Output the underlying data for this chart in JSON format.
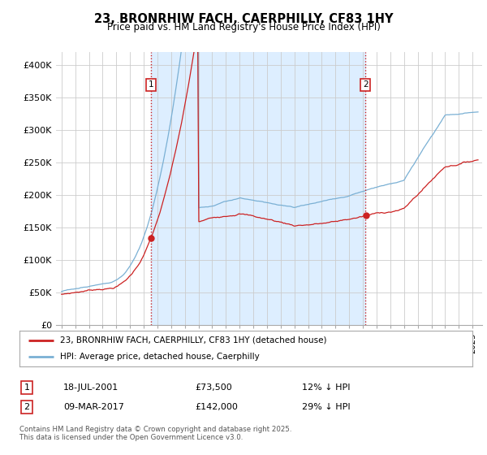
{
  "title": "23, BRONRHIW FACH, CAERPHILLY, CF83 1HY",
  "subtitle": "Price paid vs. HM Land Registry's House Price Index (HPI)",
  "ylim": [
    0,
    420000
  ],
  "yticks": [
    0,
    50000,
    100000,
    150000,
    200000,
    250000,
    300000,
    350000,
    400000
  ],
  "ytick_labels": [
    "£0",
    "£50K",
    "£100K",
    "£150K",
    "£200K",
    "£250K",
    "£300K",
    "£350K",
    "£400K"
  ],
  "hpi_color": "#7ab0d4",
  "price_color": "#cc2222",
  "vline_color": "#cc2222",
  "shade_color": "#ddeeff",
  "marker1_year": 2001.54,
  "marker1_price": 73500,
  "marker2_year": 2017.19,
  "marker2_price": 142000,
  "legend_label1": "23, BRONRHIW FACH, CAERPHILLY, CF83 1HY (detached house)",
  "legend_label2": "HPI: Average price, detached house, Caerphilly",
  "note1_num": "1",
  "note1_date": "18-JUL-2001",
  "note1_price": "£73,500",
  "note1_pct": "12% ↓ HPI",
  "note2_num": "2",
  "note2_date": "09-MAR-2017",
  "note2_price": "£142,000",
  "note2_pct": "29% ↓ HPI",
  "footer": "Contains HM Land Registry data © Crown copyright and database right 2025.\nThis data is licensed under the Open Government Licence v3.0.",
  "background_color": "#ffffff",
  "grid_color": "#cccccc"
}
